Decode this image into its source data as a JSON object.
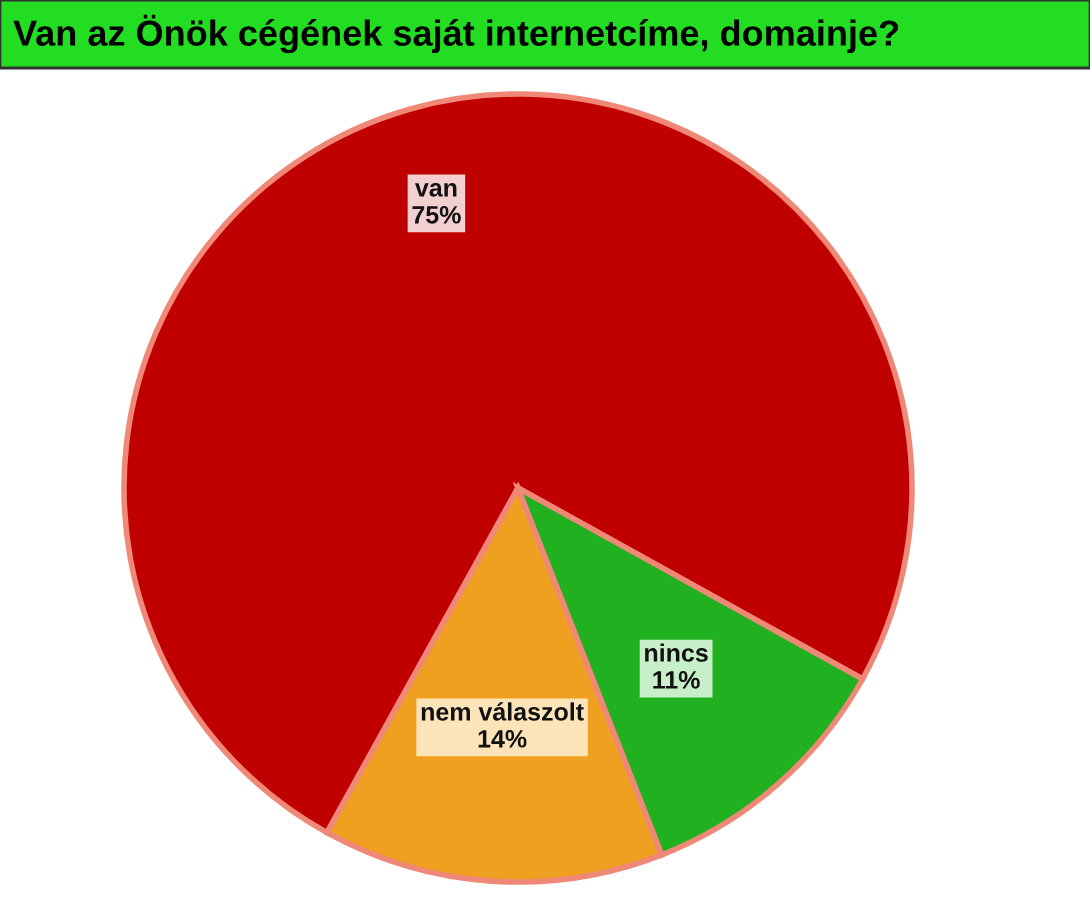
{
  "chart_data": {
    "type": "pie",
    "title": "Van az Önök cégének saját internetcíme, domainje?",
    "categories": [
      "van",
      "nem válaszolt",
      "nincs"
    ],
    "values": [
      75,
      14,
      11
    ],
    "value_labels": [
      "75%",
      "14%",
      "11%"
    ],
    "colors": [
      "#c00000",
      "#f0a020",
      "#20b020"
    ],
    "legend": false
  }
}
